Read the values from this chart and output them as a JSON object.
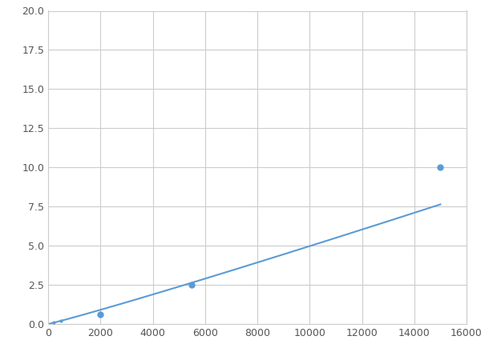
{
  "x": [
    200,
    500,
    2000,
    5500,
    15000
  ],
  "y": [
    0.1,
    0.2,
    0.6,
    2.5,
    10.0
  ],
  "line_color": "#5b9bd5",
  "marker_color": "#5b9bd5",
  "marker_size": 6,
  "linewidth": 1.5,
  "xlim": [
    0,
    16000
  ],
  "ylim": [
    0,
    20.0
  ],
  "xticks": [
    0,
    2000,
    4000,
    6000,
    8000,
    10000,
    12000,
    14000,
    16000
  ],
  "yticks": [
    0.0,
    2.5,
    5.0,
    7.5,
    10.0,
    12.5,
    15.0,
    17.5,
    20.0
  ],
  "grid_color": "#cccccc",
  "background_color": "#ffffff",
  "figsize": [
    6.0,
    4.5
  ],
  "dpi": 100
}
